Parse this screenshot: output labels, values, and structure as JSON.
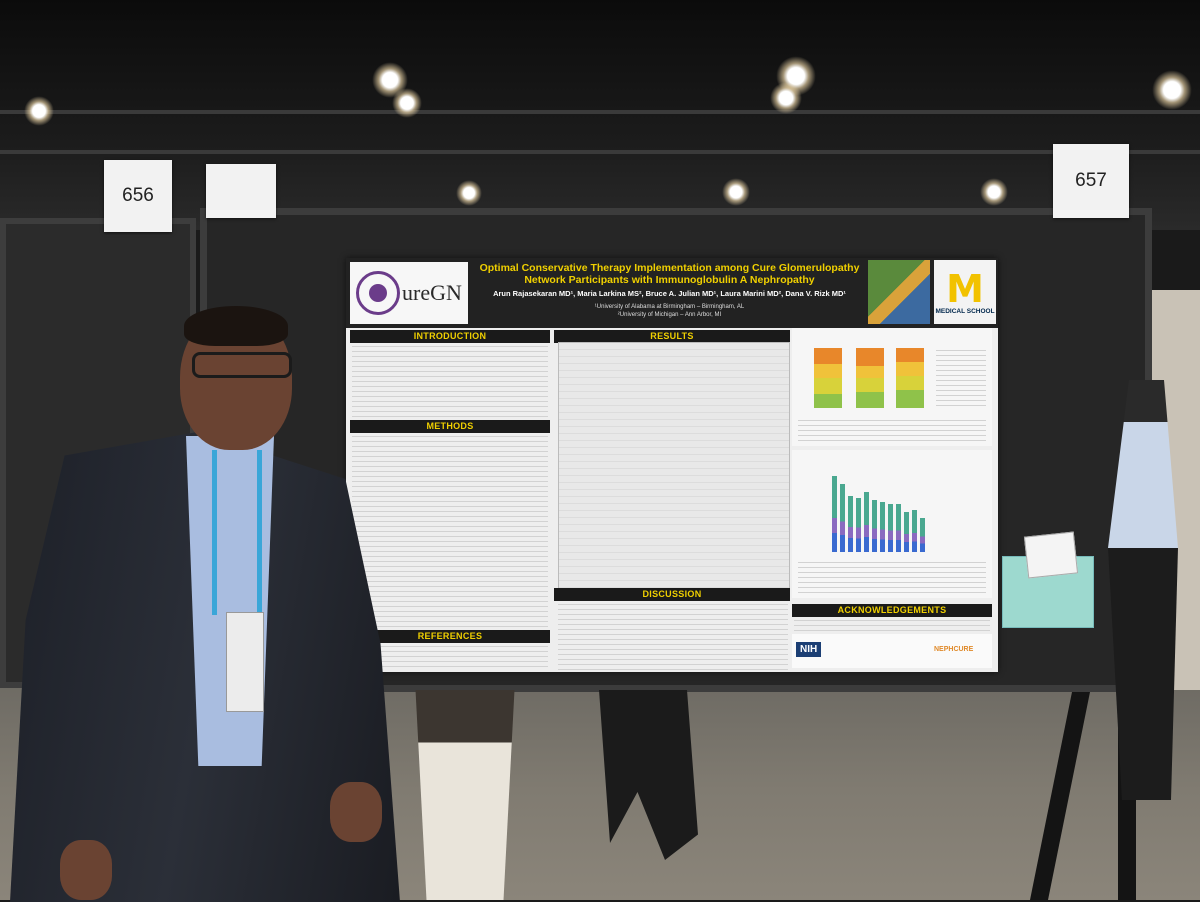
{
  "booths": {
    "left_number": "656",
    "right_number": "657"
  },
  "poster": {
    "logo_text": "ureGN",
    "title_line1": "Optimal Conservative Therapy Implementation among Cure Glomerulopathy",
    "title_line2": "Network Participants with Immunoglobulin A Nephropathy",
    "authors": "Arun Rajasekaran MD¹, Maria Larkina MS², Bruce A. Julian MD¹, Laura Marini MD², Dana V. Rizk MD¹",
    "affiliation1": "¹University of Alabama at Birmingham – Birmingham, AL",
    "affiliation2": "²University of Michigan – Ann Arbor, MI",
    "michigan_letter": "M",
    "michigan_label": "MEDICAL SCHOOL",
    "sections": {
      "introduction": "INTRODUCTION",
      "methods": "METHODS",
      "references": "REFERENCES",
      "results": "RESULTS",
      "discussion": "DISCUSSION",
      "acknowledgements": "ACKNOWLEDGEMENTS"
    },
    "sponsor_nih": "NIH",
    "sponsor_nephcure": "NEPHCURE"
  },
  "colors": {
    "title_yellow": "#f0d000",
    "header_dark": "#222222",
    "cure_purple": "#6b3c8a",
    "lanyard_blue": "#3aa6d8"
  }
}
